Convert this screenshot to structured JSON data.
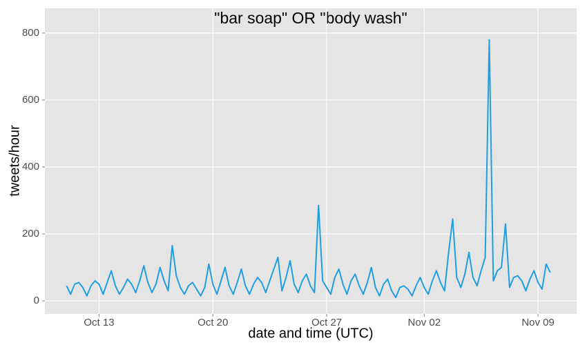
{
  "chart_data": {
    "type": "line",
    "title": "\"bar soap\" OR \"body wash\"",
    "x_label": "date and time (UTC)",
    "y_label": "tweets/hour",
    "x": [
      "Oct 11 00:00",
      "Oct 11 06:00",
      "Oct 11 12:00",
      "Oct 11 18:00",
      "Oct 12 00:00",
      "Oct 12 06:00",
      "Oct 12 12:00",
      "Oct 12 18:00",
      "Oct 13 00:00",
      "Oct 13 06:00",
      "Oct 13 12:00",
      "Oct 13 18:00",
      "Oct 14 00:00",
      "Oct 14 06:00",
      "Oct 14 12:00",
      "Oct 14 18:00",
      "Oct 15 00:00",
      "Oct 15 06:00",
      "Oct 15 12:00",
      "Oct 15 18:00",
      "Oct 16 00:00",
      "Oct 16 06:00",
      "Oct 16 12:00",
      "Oct 16 18:00",
      "Oct 17 00:00",
      "Oct 17 06:00",
      "Oct 17 12:00",
      "Oct 17 18:00",
      "Oct 18 00:00",
      "Oct 18 06:00",
      "Oct 18 12:00",
      "Oct 18 18:00",
      "Oct 19 00:00",
      "Oct 19 06:00",
      "Oct 19 12:00",
      "Oct 19 18:00",
      "Oct 20 00:00",
      "Oct 20 06:00",
      "Oct 20 12:00",
      "Oct 20 18:00",
      "Oct 21 00:00",
      "Oct 21 06:00",
      "Oct 21 12:00",
      "Oct 21 18:00",
      "Oct 22 00:00",
      "Oct 22 06:00",
      "Oct 22 12:00",
      "Oct 22 18:00",
      "Oct 23 00:00",
      "Oct 23 06:00",
      "Oct 23 12:00",
      "Oct 23 18:00",
      "Oct 24 00:00",
      "Oct 24 06:00",
      "Oct 24 12:00",
      "Oct 24 18:00",
      "Oct 25 00:00",
      "Oct 25 06:00",
      "Oct 25 12:00",
      "Oct 25 18:00",
      "Oct 26 00:00",
      "Oct 26 06:00",
      "Oct 26 12:00",
      "Oct 26 18:00",
      "Oct 27 00:00",
      "Oct 27 06:00",
      "Oct 27 12:00",
      "Oct 27 18:00",
      "Oct 28 00:00",
      "Oct 28 06:00",
      "Oct 28 12:00",
      "Oct 28 18:00",
      "Oct 29 00:00",
      "Oct 29 06:00",
      "Oct 29 12:00",
      "Oct 29 18:00",
      "Oct 30 00:00",
      "Oct 30 06:00",
      "Oct 30 12:00",
      "Oct 30 18:00",
      "Oct 31 00:00",
      "Oct 31 06:00",
      "Oct 31 12:00",
      "Oct 31 18:00",
      "Nov 01 00:00",
      "Nov 01 06:00",
      "Nov 01 12:00",
      "Nov 01 18:00",
      "Nov 02 00:00",
      "Nov 02 06:00",
      "Nov 02 12:00",
      "Nov 02 18:00",
      "Nov 03 00:00",
      "Nov 03 06:00",
      "Nov 03 12:00",
      "Nov 03 18:00",
      "Nov 04 00:00",
      "Nov 04 06:00",
      "Nov 04 12:00",
      "Nov 04 18:00",
      "Nov 05 00:00",
      "Nov 05 06:00",
      "Nov 05 12:00",
      "Nov 05 18:00",
      "Nov 06 00:00",
      "Nov 06 06:00",
      "Nov 06 12:00",
      "Nov 06 18:00",
      "Nov 07 00:00",
      "Nov 07 06:00",
      "Nov 07 12:00",
      "Nov 07 18:00",
      "Nov 08 00:00",
      "Nov 08 06:00",
      "Nov 08 12:00",
      "Nov 08 18:00",
      "Nov 09 00:00",
      "Nov 09 06:00",
      "Nov 09 12:00",
      "Nov 09 18:00"
    ],
    "values": [
      45,
      20,
      50,
      55,
      40,
      15,
      45,
      60,
      50,
      20,
      55,
      90,
      45,
      20,
      40,
      65,
      50,
      25,
      60,
      105,
      55,
      25,
      50,
      100,
      60,
      30,
      165,
      75,
      40,
      20,
      45,
      55,
      35,
      15,
      40,
      110,
      50,
      20,
      60,
      100,
      45,
      20,
      55,
      95,
      45,
      20,
      50,
      70,
      55,
      25,
      60,
      95,
      130,
      30,
      70,
      120,
      50,
      25,
      60,
      80,
      45,
      25,
      285,
      60,
      40,
      20,
      70,
      95,
      50,
      20,
      60,
      80,
      45,
      20,
      55,
      100,
      40,
      15,
      50,
      65,
      30,
      10,
      40,
      45,
      35,
      15,
      45,
      70,
      40,
      20,
      60,
      90,
      55,
      30,
      145,
      245,
      70,
      40,
      80,
      145,
      70,
      45,
      90,
      130,
      780,
      60,
      90,
      100,
      230,
      40,
      70,
      75,
      60,
      30,
      65,
      90,
      55,
      35,
      110,
      85
    ],
    "color": "#1f9ee0",
    "xlim": [
      "Oct 09 16:00",
      "Nov 11 09:00"
    ],
    "xticks": [
      {
        "value": "Oct 13",
        "label": "Oct 13"
      },
      {
        "value": "Oct 20",
        "label": "Oct 20"
      },
      {
        "value": "Oct 27",
        "label": "Oct 27"
      },
      {
        "value": "Nov 02",
        "label": "Nov 02"
      },
      {
        "value": "Nov 09",
        "label": "Nov 09"
      }
    ],
    "ylim": [
      -39,
      874
    ],
    "yticks": [
      0,
      200,
      400,
      600,
      800
    ],
    "grid": true
  }
}
